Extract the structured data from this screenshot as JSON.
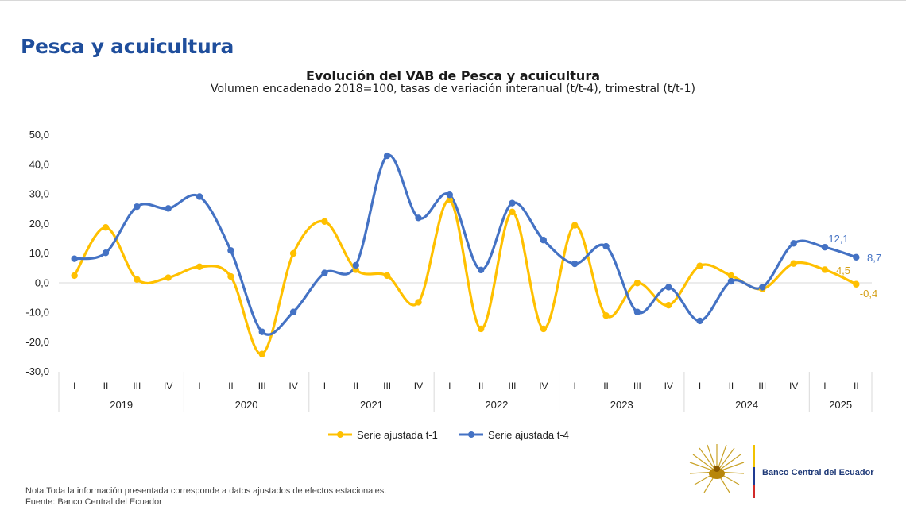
{
  "header": {
    "page_title": "Pesca y acuicultura"
  },
  "chart_data": {
    "type": "line",
    "title": "Evolución del VAB de Pesca y acuicultura",
    "subtitle": "Volumen encadenado 2018=100, tasas de variación interanual (t/t-4), trimestral (t/t-1)",
    "y_ticks": [
      "50,0",
      "40,0",
      "30,0",
      "20,0",
      "10,0",
      "0,0",
      "-10,0",
      "-20,0",
      "-30,0"
    ],
    "ylim": [
      -30,
      50
    ],
    "quarters": [
      "I",
      "II",
      "III",
      "IV",
      "I",
      "II",
      "III",
      "IV",
      "I",
      "II",
      "III",
      "IV",
      "I",
      "II",
      "III",
      "IV",
      "I",
      "II",
      "III",
      "IV",
      "I",
      "II",
      "III",
      "IV",
      "I",
      "II"
    ],
    "years": [
      {
        "label": "2019",
        "count": 4
      },
      {
        "label": "2020",
        "count": 4
      },
      {
        "label": "2021",
        "count": 4
      },
      {
        "label": "2022",
        "count": 4
      },
      {
        "label": "2023",
        "count": 4
      },
      {
        "label": "2024",
        "count": 4
      },
      {
        "label": "2025",
        "count": 2
      }
    ],
    "series": [
      {
        "name": "Serie ajustada t-1",
        "color": "#ffc000",
        "values": [
          2.5,
          18.8,
          1.2,
          1.8,
          5.5,
          2.2,
          -24.0,
          10.0,
          20.8,
          4.5,
          2.5,
          -6.5,
          28.0,
          -15.5,
          24.0,
          -15.5,
          19.5,
          -11.0,
          0.0,
          -7.5,
          5.8,
          2.5,
          -2.0,
          6.6,
          4.5,
          -0.4
        ]
      },
      {
        "name": "Serie ajustada t-4",
        "color": "#4472c4",
        "values": [
          8.2,
          10.2,
          25.8,
          25.2,
          29.2,
          11.0,
          -16.5,
          -9.8,
          3.4,
          6.0,
          43.0,
          22.0,
          29.8,
          4.4,
          27.0,
          14.5,
          6.5,
          12.4,
          -9.8,
          -1.4,
          -12.8,
          0.6,
          -1.4,
          13.4,
          12.1,
          8.7
        ]
      }
    ],
    "end_labels": {
      "t1_last": "-0,4",
      "t1_prev": "4,5",
      "t4_last": "8,7",
      "t4_prev": "12,1"
    },
    "legend_position": "bottom"
  },
  "footer": {
    "note": "Nota:Toda la información presentada corresponde a datos ajustados de efectos estacionales.",
    "source": "Fuente: Banco Central del Ecuador"
  },
  "logo": {
    "name": "Banco Central del Ecuador"
  }
}
